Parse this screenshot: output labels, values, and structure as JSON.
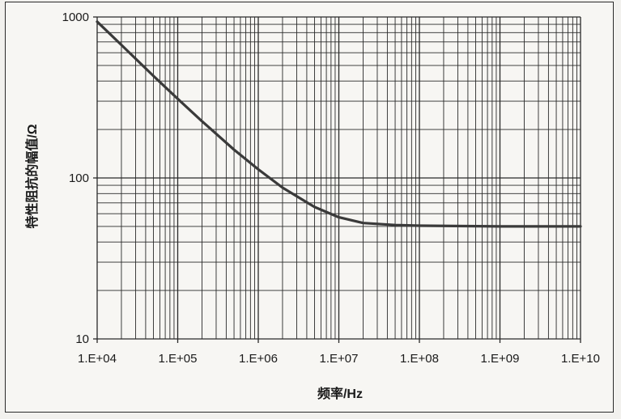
{
  "chart_data": {
    "type": "line",
    "title": "",
    "xlabel": "频率/Hz",
    "ylabel": "特性阻抗的幅值/Ω",
    "x_scale": "log",
    "y_scale": "log",
    "xlim": [
      10000,
      10000000000
    ],
    "ylim": [
      10,
      1000
    ],
    "x_tick_labels": [
      "1.E+04",
      "1.E+05",
      "1.E+06",
      "1.E+07",
      "1.E+08",
      "1.E+09",
      "1.E+10"
    ],
    "y_tick_labels": [
      "10",
      "100",
      "1000"
    ],
    "grid": true,
    "series": [
      {
        "x": [
          10000,
          20000,
          50000,
          100000,
          200000,
          500000,
          1000000,
          2000000,
          5000000,
          10000000,
          20000000,
          50000000,
          100000000,
          1000000000,
          10000000000
        ],
        "y": [
          935,
          670,
          430,
          310,
          225,
          150,
          113,
          87,
          66,
          57,
          52.5,
          51,
          50.5,
          50,
          50
        ]
      }
    ],
    "colors": {
      "line": "#3a3a3a",
      "grid": "#2a2a2a"
    }
  }
}
